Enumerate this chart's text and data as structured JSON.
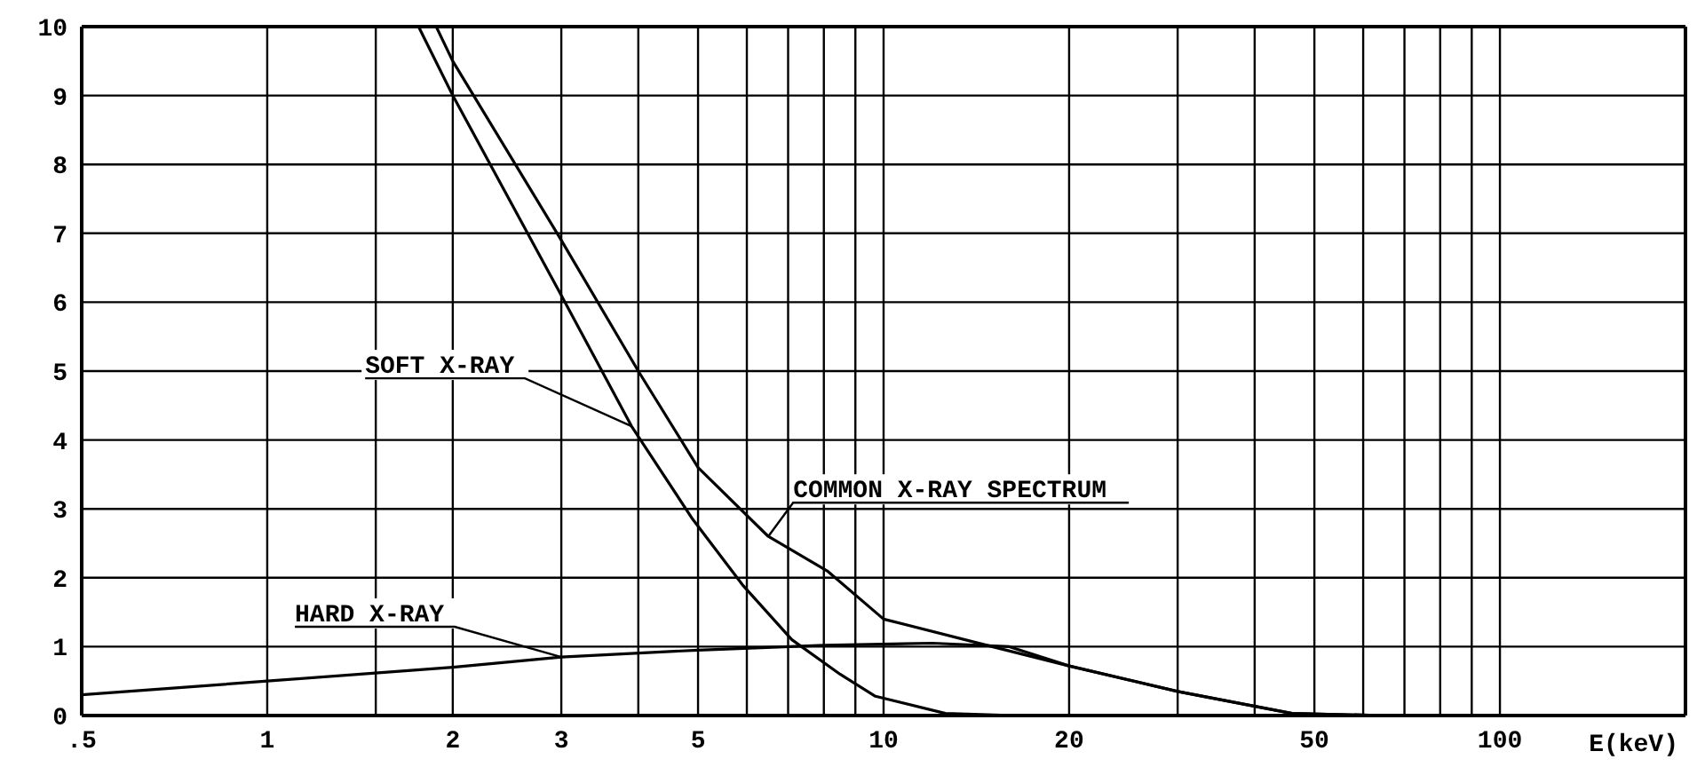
{
  "chart_data": {
    "type": "line",
    "xlabel": "E(keV)",
    "log": "x",
    "grid": true,
    "marker": "none",
    "line_style": "solid",
    "xlim": [
      0.5,
      200
    ],
    "xticks": [
      {
        "value": 0.5,
        "label": ".5"
      },
      1,
      {
        "value": 1.5,
        "label": null
      },
      2,
      3,
      {
        "value": 4,
        "label": null
      },
      5,
      {
        "value": 6,
        "label": null
      },
      {
        "value": 7,
        "label": null
      },
      {
        "value": 8,
        "label": null
      },
      {
        "value": 9,
        "label": null
      },
      10,
      20,
      {
        "value": 30,
        "label": null
      },
      {
        "value": 40,
        "label": null
      },
      50,
      {
        "value": 60,
        "label": null
      },
      {
        "value": 70,
        "label": null
      },
      {
        "value": 80,
        "label": null
      },
      {
        "value": 90,
        "label": null
      },
      100
    ],
    "ylim": [
      0,
      10
    ],
    "yticks": [
      0,
      1,
      2,
      3,
      4,
      5,
      6,
      7,
      8,
      9,
      10
    ],
    "series": [
      {
        "name": "SOFT X-RAY",
        "color": "#000000",
        "x": [
          1.76,
          2,
          3,
          3.9,
          4.9,
          5.9,
          7.1,
          8.5,
          9.7,
          12.6,
          16.4
        ],
        "values": [
          10,
          9,
          6.1,
          4.2,
          2.85,
          1.9,
          1.1,
          0.6,
          0.28,
          0.03,
          0
        ]
      },
      {
        "name": "COMMON X-RAY SPECTRUM",
        "color": "#000000",
        "x": [
          1.88,
          2,
          3,
          4,
          5,
          6.5,
          8.1,
          10,
          15,
          20,
          30,
          46,
          65
        ],
        "values": [
          10,
          9.5,
          6.9,
          5,
          3.6,
          2.6,
          2.1,
          1.4,
          1,
          0.72,
          0.35,
          0.03,
          0
        ]
      },
      {
        "name": "HARD X-RAY",
        "color": "#000000",
        "x": [
          0.5,
          1,
          2,
          3,
          5,
          8,
          12,
          16,
          20,
          30,
          46,
          65
        ],
        "values": [
          0.3,
          0.5,
          0.7,
          0.85,
          0.95,
          1.02,
          1.05,
          1,
          0.72,
          0.35,
          0.03,
          0
        ]
      }
    ]
  }
}
